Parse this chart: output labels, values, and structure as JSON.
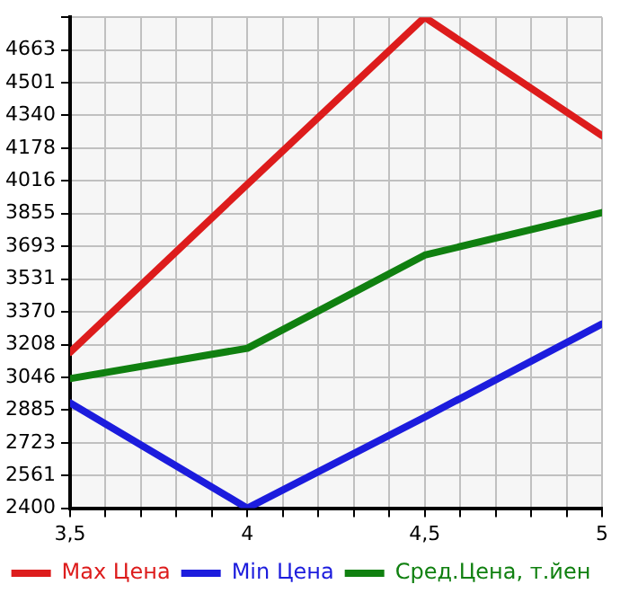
{
  "chart_data": {
    "type": "line",
    "x": [
      3.5,
      4,
      4.5,
      5
    ],
    "xlim": [
      3.5,
      5
    ],
    "xticks": [
      {
        "value": 3.5,
        "label": "3,5"
      },
      {
        "value": 3.6,
        "label": null
      },
      {
        "value": 3.7,
        "label": null
      },
      {
        "value": 3.8,
        "label": null
      },
      {
        "value": 3.9,
        "label": null
      },
      4,
      {
        "value": 4.1,
        "label": null
      },
      {
        "value": 4.2,
        "label": null
      },
      {
        "value": 4.3,
        "label": null
      },
      {
        "value": 4.4,
        "label": null
      },
      {
        "value": 4.5,
        "label": "4,5"
      },
      {
        "value": 4.6,
        "label": null
      },
      {
        "value": 4.7,
        "label": null
      },
      {
        "value": 4.8,
        "label": null
      },
      {
        "value": 4.9,
        "label": null
      },
      5
    ],
    "ylim": [
      2400,
      4825
    ],
    "yticks": [
      2400,
      2561,
      2723,
      2885,
      3046,
      3208,
      3370,
      3531,
      3693,
      3855,
      4016,
      4178,
      4340,
      4501,
      4663,
      {
        "value": 4825,
        "label": null
      }
    ],
    "series": [
      {
        "name": "Max Цена",
        "color": "#dd1c1c",
        "values": [
          3170,
          4000,
          4825,
          4240
        ]
      },
      {
        "name": "Min Цена",
        "color": "#1c1cdd",
        "values": [
          2920,
          2400,
          2850,
          3310
        ]
      },
      {
        "name": "Сред.Цена, т.йен",
        "color": "#108010",
        "values": [
          3040,
          3190,
          3650,
          3860
        ]
      }
    ],
    "grid": true,
    "legend": "bottom",
    "marker": "none",
    "line_style": "solid"
  }
}
